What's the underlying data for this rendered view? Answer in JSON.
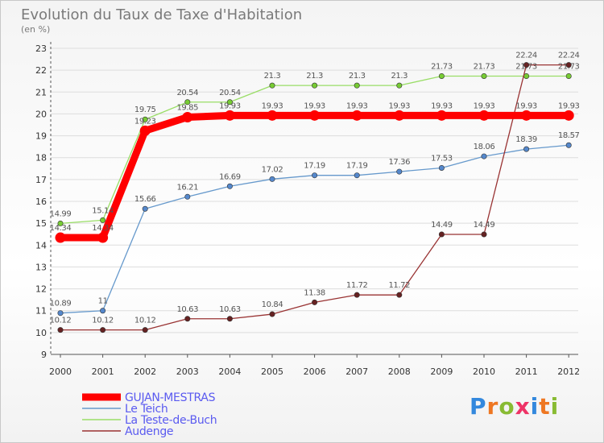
{
  "chart_data": {
    "type": "line",
    "title": "Evolution du Taux de Taxe d'Habitation",
    "subtitle": "(en %)",
    "x": [
      "2000",
      "2001",
      "2002",
      "2003",
      "2004",
      "2005",
      "2006",
      "2007",
      "2008",
      "2009",
      "2010",
      "2011",
      "2012"
    ],
    "ylim": [
      9,
      23
    ],
    "yticks": [
      "9",
      "10",
      "11",
      "12",
      "13",
      "14",
      "15",
      "16",
      "17",
      "18",
      "19",
      "20",
      "21",
      "22",
      "23"
    ],
    "grid": "horizontal",
    "legend_position": "bottom-left",
    "series": [
      {
        "name": "GUJAN-MESTRAS",
        "color": "#ff0000",
        "values": [
          14.34,
          14.34,
          19.23,
          19.85,
          19.93,
          19.93,
          19.93,
          19.93,
          19.93,
          19.93,
          19.93,
          19.93,
          19.93
        ],
        "labels": [
          "14.34",
          "14.34",
          "19.23",
          "19.85",
          "19.93",
          "19.93",
          "19.93",
          "19.93",
          "19.93",
          "19.93",
          "19.93",
          "19.93",
          "19.93"
        ]
      },
      {
        "name": "Le Teich",
        "color": "#6699cc",
        "values": [
          10.89,
          11,
          15.66,
          16.21,
          16.69,
          17.02,
          17.19,
          17.19,
          17.36,
          17.53,
          18.06,
          18.39,
          18.57
        ],
        "labels": [
          "10.89",
          "11",
          "15.66",
          "16.21",
          "16.69",
          "17.02",
          "17.19",
          "17.19",
          "17.36",
          "17.53",
          "18.06",
          "18.39",
          "18.57"
        ]
      },
      {
        "name": "La Teste-de-Buch",
        "color": "#99dd66",
        "values": [
          14.99,
          15.14,
          19.75,
          20.54,
          20.54,
          21.3,
          21.3,
          21.3,
          21.3,
          21.73,
          21.73,
          21.73,
          21.73
        ],
        "labels": [
          "14.99",
          "15.14",
          "19.75",
          "20.54",
          "20.54",
          "21.3",
          "21.3",
          "21.3",
          "21.3",
          "21.73",
          "21.73",
          "21.73",
          "21.73"
        ]
      },
      {
        "name": "Audenge",
        "color": "#993333",
        "values": [
          10.12,
          10.12,
          10.12,
          10.63,
          10.63,
          10.84,
          11.38,
          11.72,
          11.72,
          14.49,
          14.49,
          22.24,
          22.24
        ],
        "labels": [
          "10.12",
          "10.12",
          "10.12",
          "10.63",
          "10.63",
          "10.84",
          "11.38",
          "11.72",
          "11.72",
          "14.49",
          "14.49",
          "22.24",
          "22.24"
        ]
      }
    ]
  },
  "brand": {
    "letters": [
      "P",
      "r",
      "o",
      "x",
      "i",
      "t",
      "i"
    ],
    "colors": [
      "#3388dd",
      "#ee7722",
      "#88bb33",
      "#ee3366",
      "#3388dd",
      "#ee7722",
      "#88bb33"
    ]
  }
}
